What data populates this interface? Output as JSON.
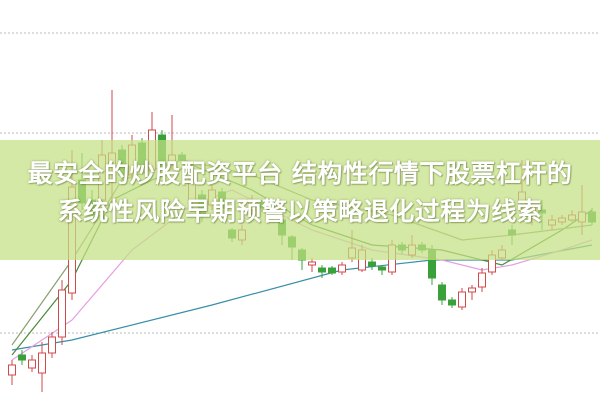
{
  "title": {
    "line1": "最安全的炒股配资平台 结构性行情下股票杠杆的",
    "line2": "系统性风险早期预警以策略退化过程为线索"
  },
  "colors": {
    "up": "#d04a4a",
    "down": "#3aa03a",
    "banner": "#c4e082",
    "grid": "#bbbbbb"
  },
  "chart_data": {
    "type": "candlestick",
    "title": "",
    "xlabel": "",
    "ylabel": "",
    "ylim": [
      0,
      400
    ],
    "grid": true,
    "grid_levels": [
      67,
      267,
      367
    ],
    "candles": [
      [
        25,
        40,
        15,
        35
      ],
      [
        45,
        50,
        35,
        40
      ],
      [
        32,
        45,
        28,
        40
      ],
      [
        27,
        58,
        8,
        47
      ],
      [
        47,
        68,
        42,
        63
      ],
      [
        63,
        120,
        55,
        110
      ],
      [
        107,
        250,
        100,
        213
      ],
      [
        220,
        247,
        190,
        197
      ],
      [
        200,
        210,
        178,
        185
      ],
      [
        200,
        260,
        190,
        245
      ],
      [
        235,
        310,
        190,
        247
      ],
      [
        250,
        255,
        215,
        225
      ],
      [
        225,
        265,
        220,
        255
      ],
      [
        257,
        262,
        228,
        235
      ],
      [
        230,
        288,
        225,
        270
      ],
      [
        265,
        270,
        230,
        235
      ],
      [
        235,
        285,
        230,
        245
      ],
      [
        245,
        248,
        236,
        240
      ],
      [
        200,
        225,
        190,
        220
      ],
      [
        205,
        210,
        178,
        185
      ],
      [
        195,
        215,
        190,
        210
      ],
      [
        208,
        212,
        185,
        192
      ],
      [
        170,
        172,
        158,
        162
      ],
      [
        160,
        175,
        155,
        170
      ],
      [
        190,
        205,
        185,
        200
      ],
      [
        197,
        200,
        188,
        192
      ],
      [
        193,
        196,
        180,
        185
      ],
      [
        180,
        183,
        155,
        165
      ],
      [
        163,
        165,
        140,
        153
      ],
      [
        150,
        152,
        130,
        140
      ],
      [
        135,
        142,
        128,
        138
      ],
      [
        132,
        135,
        122,
        128
      ],
      [
        132,
        134,
        125,
        127
      ],
      [
        128,
        138,
        125,
        135
      ],
      [
        142,
        170,
        138,
        152
      ],
      [
        130,
        155,
        128,
        150
      ],
      [
        138,
        142,
        130,
        134
      ],
      [
        133,
        135,
        125,
        130
      ],
      [
        128,
        160,
        125,
        155
      ],
      [
        155,
        158,
        146,
        150
      ],
      [
        145,
        165,
        142,
        155
      ],
      [
        155,
        158,
        147,
        150
      ],
      [
        150,
        155,
        115,
        122
      ],
      [
        115,
        118,
        95,
        100
      ],
      [
        100,
        103,
        92,
        95
      ],
      [
        93,
        112,
        90,
        108
      ],
      [
        108,
        115,
        100,
        112
      ],
      [
        113,
        132,
        108,
        127
      ],
      [
        128,
        150,
        125,
        145
      ],
      [
        142,
        155,
        140,
        150
      ],
      [
        170,
        175,
        155,
        165
      ],
      [
        195,
        240,
        180,
        208
      ],
      [
        185,
        200,
        175,
        195
      ],
      [
        190,
        200,
        170,
        187
      ],
      [
        175,
        185,
        170,
        180
      ],
      [
        178,
        185,
        175,
        182
      ],
      [
        180,
        190,
        178,
        185
      ],
      [
        178,
        215,
        165,
        188
      ],
      [
        188,
        192,
        175,
        178
      ]
    ],
    "moving_averages": [
      {
        "color": "#3a8fa8",
        "points": [
          [
            0,
            50
          ],
          [
            6,
            60
          ],
          [
            20,
            95
          ],
          [
            33,
            130
          ],
          [
            42,
            140
          ],
          [
            50,
            140
          ],
          [
            58,
            155
          ]
        ]
      },
      {
        "color": "#e6a0e0",
        "points": [
          [
            0,
            40
          ],
          [
            6,
            80
          ],
          [
            12,
            150
          ],
          [
            18,
            195
          ],
          [
            22,
            210
          ],
          [
            30,
            170
          ],
          [
            36,
            150
          ],
          [
            43,
            140
          ],
          [
            47,
            130
          ],
          [
            50,
            135
          ],
          [
            55,
            150
          ],
          [
            58,
            160
          ]
        ]
      },
      {
        "color": "#4a8a3a",
        "points": [
          [
            0,
            45
          ],
          [
            6,
            120
          ],
          [
            10,
            200
          ],
          [
            14,
            220
          ],
          [
            18,
            235
          ],
          [
            24,
            210
          ],
          [
            30,
            175
          ],
          [
            36,
            155
          ],
          [
            43,
            150
          ],
          [
            49,
            135
          ],
          [
            55,
            170
          ],
          [
            58,
            190
          ]
        ]
      },
      {
        "color": "#8aa070",
        "points": [
          [
            0,
            55
          ],
          [
            6,
            140
          ],
          [
            11,
            220
          ],
          [
            17,
            240
          ],
          [
            24,
            225
          ],
          [
            30,
            200
          ],
          [
            38,
            185
          ],
          [
            45,
            160
          ],
          [
            50,
            165
          ],
          [
            58,
            175
          ]
        ]
      }
    ]
  }
}
